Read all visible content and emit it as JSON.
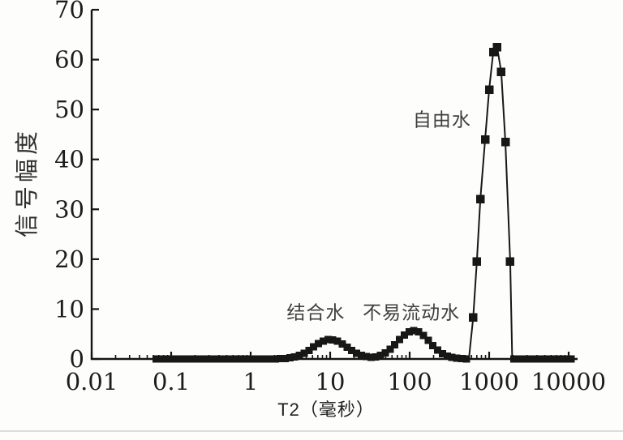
{
  "chart_data": {
    "type": "line",
    "title": "",
    "xlabel": "T2（毫秒）",
    "ylabel": "信号幅度",
    "x_scale": "log",
    "xlim": [
      0.01,
      10000
    ],
    "ylim": [
      0,
      70
    ],
    "xticks": [
      {
        "value": 0.01,
        "label": "0.01"
      },
      {
        "value": 0.1,
        "label": "0.1"
      },
      {
        "value": 1,
        "label": "1"
      },
      {
        "value": 10,
        "label": "10"
      },
      {
        "value": 100,
        "label": "100"
      },
      {
        "value": 1000,
        "label": "1000"
      },
      {
        "value": 10000,
        "label": "10000"
      }
    ],
    "yticks": [
      0,
      10,
      20,
      30,
      40,
      50,
      60,
      70
    ],
    "marker": "square",
    "line_color": "#171717",
    "annotation_color": "#3e3e3e",
    "grid": "off",
    "legend": "none",
    "series": [
      {
        "name": "结合水",
        "shape": "gaussian-log",
        "center_t2_ms": 10,
        "sigma_decades": 0.21,
        "height": 3.9
      },
      {
        "name": "不易流动水",
        "shape": "gaussian-log",
        "center_t2_ms": 112,
        "sigma_decades": 0.2,
        "height": 5.7
      },
      {
        "name": "自由水",
        "shape": "points",
        "points": [
          [
            556,
            0
          ],
          [
            630,
            8.3
          ],
          [
            700,
            19.5
          ],
          [
            775,
            32
          ],
          [
            890,
            44
          ],
          [
            1000,
            54
          ],
          [
            1125,
            61.5
          ],
          [
            1260,
            62.5
          ],
          [
            1420,
            57.5
          ],
          [
            1600,
            43.5
          ],
          [
            1840,
            19.5
          ],
          [
            1950,
            0
          ]
        ]
      }
    ],
    "baseline": {
      "from_t2_ms": 0.065,
      "to_t2_ms": 12000,
      "value": 0,
      "gap_t2_ms": [
        556,
        1950
      ]
    },
    "annotations": [
      {
        "text": "结合水",
        "x_t2_ms": 6.6,
        "y_amplitude": 9.3
      },
      {
        "text": "不易流动水",
        "x_t2_ms": 105,
        "y_amplitude": 9.3
      },
      {
        "text": "自由水",
        "x_t2_ms": 255,
        "y_amplitude": 48
      }
    ]
  }
}
